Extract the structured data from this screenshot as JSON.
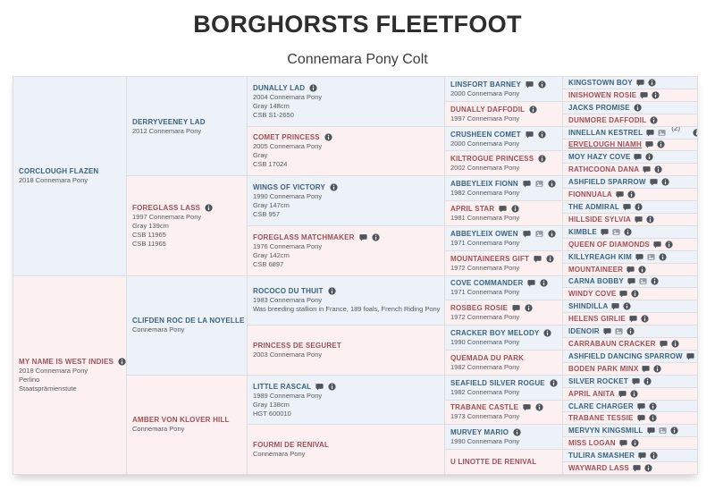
{
  "title": "BORGHORSTS FLEETFOOT",
  "subtitle": "Connemara Pony Colt",
  "colors": {
    "male_bg": "#ecf2f8",
    "female_bg": "#fcf1f0",
    "male_name": "#3a617c",
    "female_name": "#a04e57",
    "border": "#dcdee1"
  },
  "icon_legend": {
    "speech": "comment-icon",
    "image": "photo-icon",
    "info": "info-icon"
  },
  "pedigree": {
    "generations": [
      {
        "id": "gen1",
        "span": 16,
        "cells": [
          {
            "name": "CORCLOUGH FLAZEN",
            "sex": "m",
            "lines": [
              "2018 Connemara Pony"
            ],
            "icons": []
          },
          {
            "name": "MY NAME IS WEST INDIES",
            "sex": "f",
            "lines": [
              "2018 Connemara Pony",
              "Perlino",
              "Staatsprämienstute"
            ],
            "icons": [
              "info"
            ]
          }
        ]
      },
      {
        "id": "gen2",
        "span": 8,
        "cells": [
          {
            "name": "DERRYVEENEY LAD",
            "sex": "m",
            "lines": [
              "2012 Connemara Pony"
            ],
            "icons": []
          },
          {
            "name": "FOREGLASS LASS",
            "sex": "f",
            "lines": [
              "1997 Connemara Pony",
              "Gray 139cm",
              "CSB 11965",
              "CSB 11965"
            ],
            "icons": [
              "info"
            ]
          },
          {
            "name": "CLIFDEN ROC DE LA NOYELLE",
            "sex": "m",
            "lines": [
              "Connemara Pony"
            ],
            "icons": []
          },
          {
            "name": "AMBER VON KLOVER HILL",
            "sex": "f",
            "lines": [
              "Connemara Pony"
            ],
            "icons": []
          }
        ]
      },
      {
        "id": "gen3",
        "span": 4,
        "cells": [
          {
            "name": "DUNALLY LAD",
            "sex": "m",
            "lines": [
              "2004 Connemara Pony",
              "Gray 148cm",
              "CSB S1-2650"
            ],
            "icons": [
              "info"
            ]
          },
          {
            "name": "COMET PRINCESS",
            "sex": "f",
            "lines": [
              "2005 Connemara Pony",
              "Gray",
              "CSB 17024"
            ],
            "icons": [
              "info"
            ]
          },
          {
            "name": "WINGS OF VICTORY",
            "sex": "m",
            "lines": [
              "1990 Connemara Pony",
              "Gray 147cm",
              "CSB 957"
            ],
            "icons": [
              "info"
            ]
          },
          {
            "name": "FOREGLASS MATCHMAKER",
            "sex": "f",
            "lines": [
              "1976 Connemara Pony",
              "Gray 142cm",
              "CSB 6897"
            ],
            "icons": [
              "speech",
              "info"
            ]
          },
          {
            "name": "ROCOCO DU THUIT",
            "sex": "m",
            "lines": [
              "1983 Connemara Pony",
              "Was breeding stallion in France, 189 foals, French Riding Pony"
            ],
            "icons": [
              "info"
            ]
          },
          {
            "name": "PRINCESS DE SEGURET",
            "sex": "f",
            "lines": [
              "2003 Connemara Pony"
            ],
            "icons": []
          },
          {
            "name": "LITTLE RASCAL",
            "sex": "m",
            "lines": [
              "1989 Connemara Pony",
              "Gray 138cm",
              "HGT 600010"
            ],
            "icons": [
              "speech",
              "info"
            ]
          },
          {
            "name": "FOURMI DE RENIVAL",
            "sex": "f",
            "lines": [
              "Connemara Pony"
            ],
            "icons": []
          }
        ]
      },
      {
        "id": "gen4",
        "span": 2,
        "cells": [
          {
            "name": "LINSFORT BARNEY",
            "sex": "m",
            "lines": [
              "2000 Connemara Pony"
            ],
            "icons": [
              "speech",
              "info"
            ]
          },
          {
            "name": "DUNALLY DAFFODIL",
            "sex": "f",
            "lines": [
              "1997 Connemara Pony"
            ],
            "icons": [
              "info"
            ]
          },
          {
            "name": "CRUSHEEN COMET",
            "sex": "m",
            "lines": [
              "2000 Connemara Pony"
            ],
            "icons": [
              "speech",
              "info"
            ]
          },
          {
            "name": "KILTROGUE PRINCESS",
            "sex": "f",
            "lines": [
              "2002 Connemara Pony"
            ],
            "icons": [
              "info"
            ]
          },
          {
            "name": "ABBEYLEIX FIONN",
            "sex": "m",
            "lines": [
              "1982 Connemara Pony"
            ],
            "icons": [
              "speech",
              "image",
              "info"
            ]
          },
          {
            "name": "APRIL STAR",
            "sex": "f",
            "lines": [
              "1981 Connemara Pony"
            ],
            "icons": [
              "speech",
              "info"
            ]
          },
          {
            "name": "ABBEYLEIX OWEN",
            "sex": "m",
            "lines": [
              "1971 Connemara Pony"
            ],
            "icons": [
              "speech",
              "image",
              "info"
            ]
          },
          {
            "name": "MOUNTAINEERS GIFT",
            "sex": "f",
            "lines": [
              "1972 Connemara Pony"
            ],
            "icons": [
              "speech",
              "info"
            ]
          },
          {
            "name": "COVE COMMANDER",
            "sex": "m",
            "lines": [
              "1971 Connemara Pony"
            ],
            "icons": [
              "speech",
              "info"
            ]
          },
          {
            "name": "ROSBEG ROSIE",
            "sex": "f",
            "lines": [
              "1972 Connemara Pony"
            ],
            "icons": [
              "speech",
              "info"
            ]
          },
          {
            "name": "CRACKER BOY MELODY",
            "sex": "m",
            "lines": [
              "1990 Connemara Pony"
            ],
            "icons": [
              "info"
            ]
          },
          {
            "name": "QUEMADA DU PARK",
            "sex": "f",
            "lines": [
              "1982 Connemara Pony"
            ],
            "icons": []
          },
          {
            "name": "SEAFIELD SILVER ROGUE",
            "sex": "m",
            "lines": [
              "1982 Connemara Pony"
            ],
            "icons": [
              "info"
            ]
          },
          {
            "name": "TRABANE CASTLE",
            "sex": "f",
            "lines": [
              "1973 Connemara Pony"
            ],
            "icons": [
              "speech",
              "info"
            ]
          },
          {
            "name": "MURVEY MARIO",
            "sex": "m",
            "lines": [
              "1990 Connemara Pony"
            ],
            "icons": [
              "info"
            ]
          },
          {
            "name": "U LINOTTE DE RENIVAL",
            "sex": "f",
            "lines": [],
            "icons": []
          }
        ]
      },
      {
        "id": "gen5",
        "span": 1,
        "cells": [
          {
            "name": "KINGSTOWN BOY",
            "sex": "m",
            "icons": [
              "speech",
              "info"
            ]
          },
          {
            "name": "INISHOWEN ROSIE",
            "sex": "f",
            "icons": [
              "speech",
              "info"
            ]
          },
          {
            "name": "JACKS PROMISE",
            "sex": "m",
            "icons": [
              "info"
            ]
          },
          {
            "name": "DUNMORE DAFFODIL",
            "sex": "f",
            "icons": [
              "info"
            ]
          },
          {
            "name": "INNELLAN KESTREL",
            "sex": "m",
            "icons": [
              "speech",
              "image",
              "note",
              "info"
            ],
            "note": "(2)"
          },
          {
            "name": "ERVELOUGH NIAMH",
            "sex": "f",
            "icons": [
              "speech",
              "info"
            ],
            "underline": true
          },
          {
            "name": "MOY HAZY COVE",
            "sex": "m",
            "icons": [
              "speech",
              "info"
            ]
          },
          {
            "name": "RATHCOONA DANA",
            "sex": "f",
            "icons": [
              "speech",
              "info"
            ]
          },
          {
            "name": "ASHFIELD SPARROW",
            "sex": "m",
            "icons": [
              "speech",
              "info"
            ]
          },
          {
            "name": "FIONNUALA",
            "sex": "f",
            "icons": [
              "speech",
              "info"
            ]
          },
          {
            "name": "THE ADMIRAL",
            "sex": "m",
            "icons": [
              "speech",
              "info"
            ]
          },
          {
            "name": "HILLSIDE SYLVIA",
            "sex": "f",
            "icons": [
              "speech",
              "info"
            ]
          },
          {
            "name": "KIMBLE",
            "sex": "m",
            "icons": [
              "speech",
              "image",
              "info"
            ]
          },
          {
            "name": "QUEEN OF DIAMONDS",
            "sex": "f",
            "icons": [
              "speech",
              "info"
            ]
          },
          {
            "name": "KILLYREAGH KIM",
            "sex": "m",
            "icons": [
              "speech",
              "image",
              "info"
            ]
          },
          {
            "name": "MOUNTAINEER",
            "sex": "f",
            "icons": [
              "speech",
              "info"
            ]
          },
          {
            "name": "CARNA BOBBY",
            "sex": "m",
            "icons": [
              "speech",
              "image",
              "info"
            ]
          },
          {
            "name": "WINDY COVE",
            "sex": "f",
            "icons": [
              "speech",
              "info"
            ]
          },
          {
            "name": "SHINDILLA",
            "sex": "m",
            "icons": [
              "speech",
              "info"
            ]
          },
          {
            "name": "HELENS GIRLIE",
            "sex": "f",
            "icons": [
              "speech",
              "info"
            ]
          },
          {
            "name": "IDENOIR",
            "sex": "m",
            "icons": [
              "speech",
              "image",
              "info"
            ]
          },
          {
            "name": "CARRABAUN CRACKER",
            "sex": "f",
            "icons": [
              "speech",
              "info"
            ]
          },
          {
            "name": "ASHFIELD DANCING SPARROW",
            "sex": "m",
            "icons": [
              "speech",
              "image",
              "info"
            ]
          },
          {
            "name": "BODEN PARK MINX",
            "sex": "f",
            "icons": [
              "speech",
              "info"
            ]
          },
          {
            "name": "SILVER ROCKET",
            "sex": "m",
            "icons": [
              "speech",
              "info"
            ]
          },
          {
            "name": "APRIL ANITA",
            "sex": "f",
            "icons": [
              "speech",
              "info"
            ]
          },
          {
            "name": "CLARE CHARGER",
            "sex": "m",
            "icons": [
              "speech",
              "info"
            ]
          },
          {
            "name": "TRABANE TESSIE",
            "sex": "f",
            "icons": [
              "speech",
              "info"
            ]
          },
          {
            "name": "MERVYN KINGSMILL",
            "sex": "m",
            "icons": [
              "speech",
              "image",
              "info"
            ]
          },
          {
            "name": "MISS LOGAN",
            "sex": "f",
            "icons": [
              "speech",
              "info"
            ]
          },
          {
            "name": "TULIRA SMASHER",
            "sex": "m",
            "icons": [
              "speech",
              "info"
            ]
          },
          {
            "name": "WAYWARD LASS",
            "sex": "f",
            "icons": [
              "speech",
              "info"
            ]
          }
        ]
      }
    ]
  }
}
